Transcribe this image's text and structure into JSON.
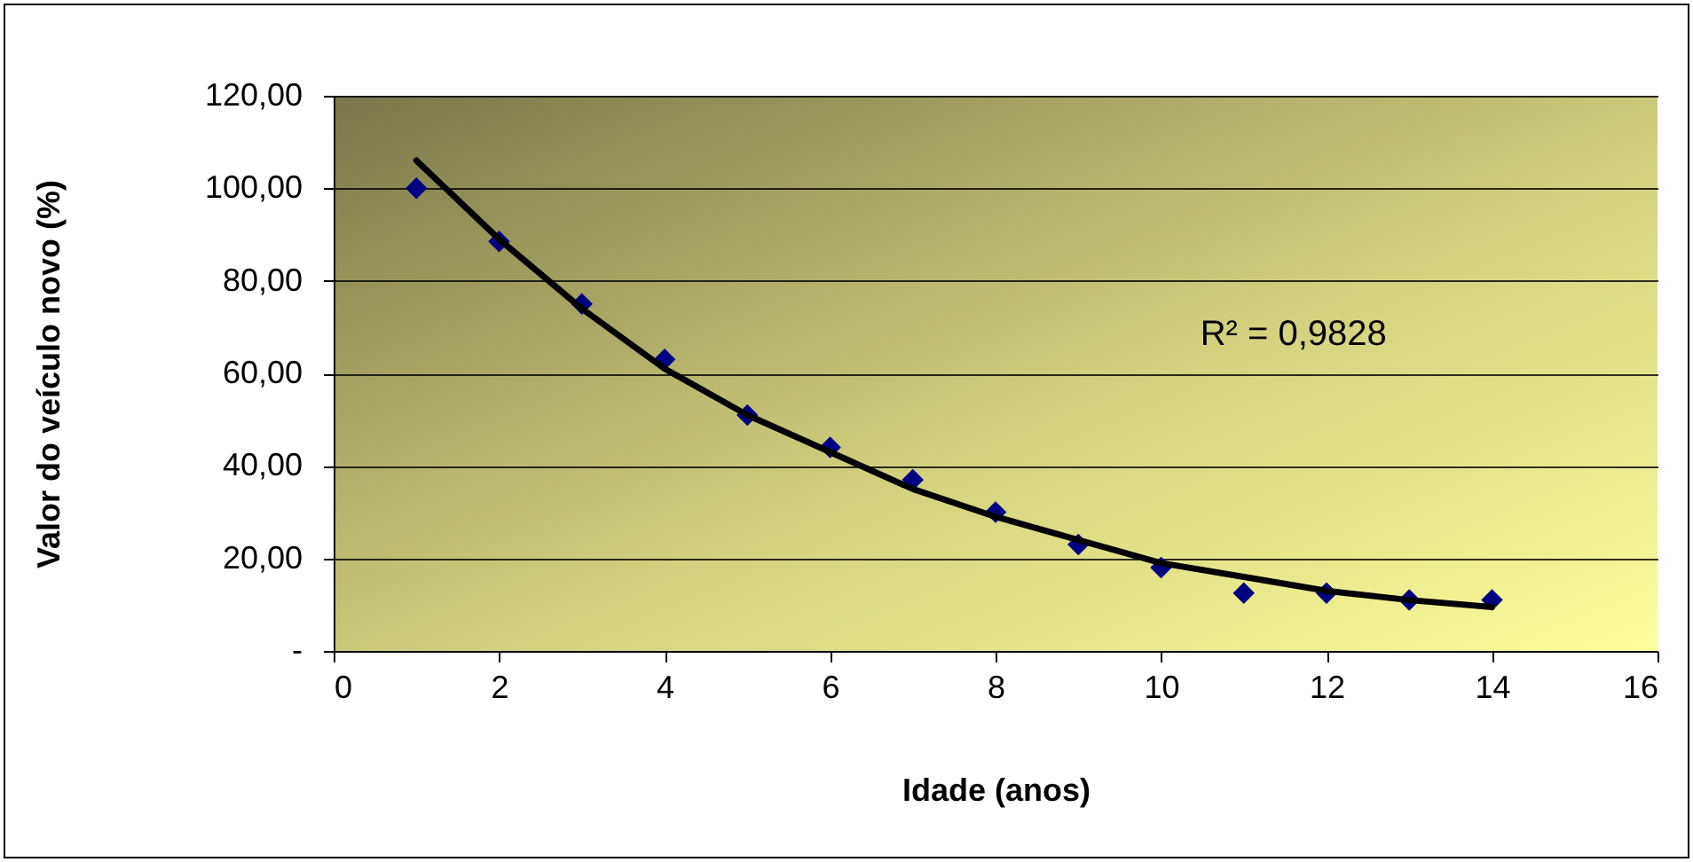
{
  "chart_data": {
    "type": "scatter",
    "xlabel": "Idade  (anos)",
    "ylabel": "Valor do veículo novo (%)",
    "x": [
      1,
      2,
      3,
      4,
      5,
      6,
      7,
      8,
      9,
      10,
      11,
      12,
      13,
      14
    ],
    "series": [
      {
        "color": "#000080",
        "marker": "diamond",
        "values": [
          100,
          88.5,
          75,
          63,
          51,
          44,
          37,
          30,
          23,
          18,
          12.5,
          12.5,
          11,
          11
        ]
      },
      {
        "type": "line",
        "color": "#000000",
        "line_style": "solid",
        "x": [
          1,
          2,
          3,
          4,
          5,
          6,
          7,
          8,
          9,
          10,
          11,
          12,
          13,
          14
        ],
        "values": [
          106,
          89,
          74,
          61,
          51,
          43,
          35,
          29,
          24,
          19,
          16,
          13,
          11,
          9.5
        ]
      }
    ],
    "xlim": [
      0,
      16
    ],
    "xticks": [
      0,
      2,
      4,
      6,
      8,
      10,
      12,
      14,
      16
    ],
    "ylim": [
      0,
      120
    ],
    "yticks": [
      {
        "value": 0,
        "label": "-"
      },
      {
        "value": 20,
        "label": "20,00"
      },
      {
        "value": 40,
        "label": "40,00"
      },
      {
        "value": 60,
        "label": "60,00"
      },
      {
        "value": 80,
        "label": "80,00"
      },
      {
        "value": 100,
        "label": "100,00"
      },
      {
        "value": 120,
        "label": "120,00"
      }
    ],
    "grid": "y",
    "annotations": [
      "R² = 0,9828"
    ]
  }
}
